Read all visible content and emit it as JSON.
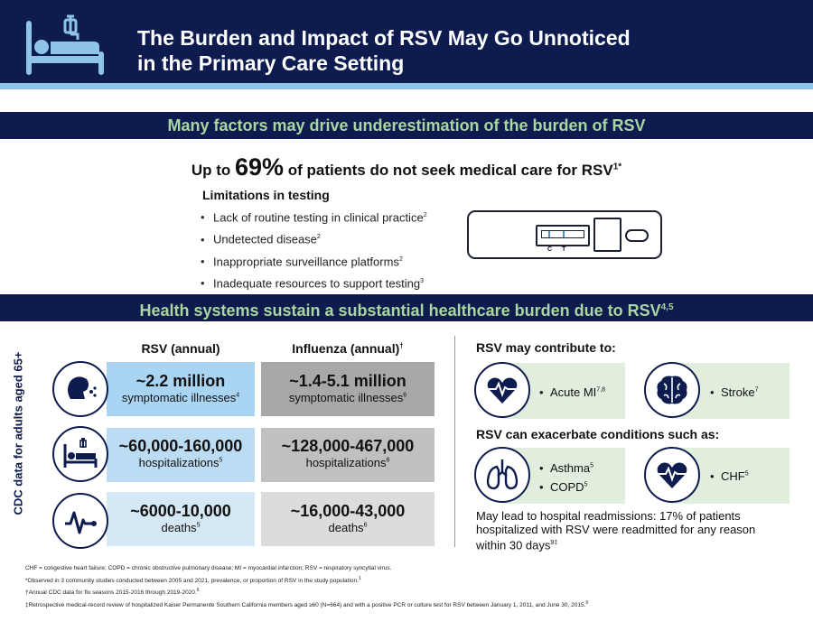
{
  "header": {
    "title_line1": "The Burden and Impact of RSV May Go Unnoticed",
    "title_line2": "in the Primary Care Setting",
    "icon": "hospital-bed-icon",
    "color": "#0d1b4f",
    "stripe_color": "#8ec3ea"
  },
  "section1": {
    "band_title": "Many factors may drive underestimation of the burden of RSV",
    "stat_prefix": "Up to ",
    "stat_value": "69%",
    "stat_suffix": " of patients do not seek medical care for RSV",
    "stat_ref": "1*",
    "limitations_title": "Limitations in testing",
    "limitations": [
      {
        "text": "Lack of routine testing in clinical practice",
        "ref": "2"
      },
      {
        "text": "Undetected disease",
        "ref": "2"
      },
      {
        "text": "Inappropriate surveillance platforms",
        "ref": "2"
      },
      {
        "text": "Inadequate resources to support testing",
        "ref": "3"
      }
    ],
    "test_kit": {
      "c_label": "C",
      "t_label": "T",
      "icon": "rapid-test-icon"
    }
  },
  "section2": {
    "band_title": "Health systems sustain a substantial healthcare burden due to RSV",
    "band_ref": "4,5",
    "y_label": "CDC data for adults aged 65+",
    "rsv_header": "RSV (annual)",
    "flu_header": "Influenza (annual)",
    "flu_header_ref": "†",
    "rows": [
      {
        "icon": "cough-icon",
        "rsv_value": "~2.2 million",
        "rsv_label": "symptomatic illnesses",
        "rsv_ref": "4",
        "flu_value": "~1.4-5.1 million",
        "flu_label": "symptomatic illnesses",
        "flu_ref": "6"
      },
      {
        "icon": "hospital-bed-icon",
        "rsv_value": "~60,000-160,000",
        "rsv_label": "hospitalizations",
        "rsv_ref": "5",
        "flu_value": "~128,000-467,000",
        "flu_label": "hospitalizations",
        "flu_ref": "6"
      },
      {
        "icon": "flatline-icon",
        "rsv_value": "~6000-10,000",
        "rsv_label": "deaths",
        "rsv_ref": "5",
        "flu_value": "~16,000-43,000",
        "flu_label": "deaths",
        "flu_ref": "6"
      }
    ],
    "contribute_title": "RSV may contribute to:",
    "contribute": [
      {
        "icon": "heart-ecg-icon",
        "text": "Acute MI",
        "ref": "7,8"
      },
      {
        "icon": "brain-icon",
        "text": "Stroke",
        "ref": "7"
      }
    ],
    "exacerbate_title": "RSV can exacerbate conditions such as:",
    "exacerbate": [
      {
        "icon": "lungs-icon",
        "items": [
          {
            "text": "Asthma",
            "ref": "5"
          },
          {
            "text": "COPD",
            "ref": "5"
          }
        ]
      },
      {
        "icon": "heart-ecg-icon",
        "items": [
          {
            "text": "CHF",
            "ref": "5"
          }
        ]
      }
    ],
    "readmission_line1": "May lead to hospital readmissions: 17% of patients",
    "readmission_line2": "hospitalized with RSV were readmitted for any reason",
    "readmission_line3": "within 30 days",
    "readmission_ref": "9‡"
  },
  "footnotes": {
    "abbrev": "CHF = congestive heart failure; COPD = chronic obstructive pulmonary disease; MI = myocardial infarction; RSV = respiratory syncytial virus.",
    "star": "*Observed in 3 community studies conducted between 2005 and 2021, prevalence, or proportion of RSV in the study population.",
    "star_ref": "1",
    "dagger": "†Annual CDC data for flu seasons 2015-2016 through 2019-2020.",
    "dagger_ref": "6",
    "ddagger": "‡Retrospective medical-record review of hospitalized Kaiser Permanente Southern California members aged ≥60 (N=664) and with a positive PCR or culture test for RSV between January 1, 2011, and June 30, 2015.",
    "ddagger_ref": "9"
  }
}
